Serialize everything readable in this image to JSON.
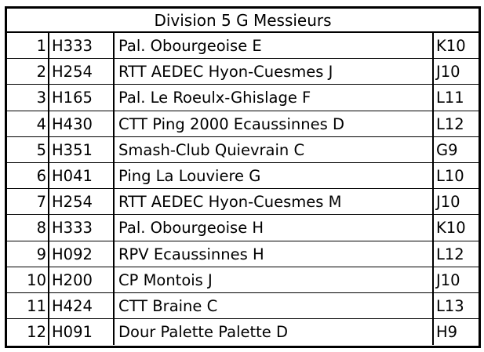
{
  "table": {
    "title": "Division 5 G Messieurs",
    "rows": [
      {
        "rank": "1",
        "code": "H333",
        "team": "Pal. Obourgeoise E",
        "group": "K10"
      },
      {
        "rank": "2",
        "code": "H254",
        "team": "RTT AEDEC Hyon-Cuesmes J",
        "group": "J10"
      },
      {
        "rank": "3",
        "code": "H165",
        "team": "Pal. Le Roeulx-Ghislage F",
        "group": "L11"
      },
      {
        "rank": "4",
        "code": "H430",
        "team": "CTT Ping 2000 Ecaussinnes D",
        "group": "L12"
      },
      {
        "rank": "5",
        "code": "H351",
        "team": "Smash-Club Quievrain C",
        "group": "G9"
      },
      {
        "rank": "6",
        "code": "H041",
        "team": "Ping La Louviere G",
        "group": "L10"
      },
      {
        "rank": "7",
        "code": "H254",
        "team": "RTT AEDEC Hyon-Cuesmes M",
        "group": "J10"
      },
      {
        "rank": "8",
        "code": "H333",
        "team": "Pal. Obourgeoise H",
        "group": "K10"
      },
      {
        "rank": "9",
        "code": "H092",
        "team": "RPV Ecaussinnes H",
        "group": "L12"
      },
      {
        "rank": "10",
        "code": "H200",
        "team": "CP Montois J",
        "group": "J10"
      },
      {
        "rank": "11",
        "code": "H424",
        "team": "CTT Braine C",
        "group": "L13"
      },
      {
        "rank": "12",
        "code": "H091",
        "team": "Dour Palette Palette D",
        "group": "H9"
      }
    ]
  }
}
